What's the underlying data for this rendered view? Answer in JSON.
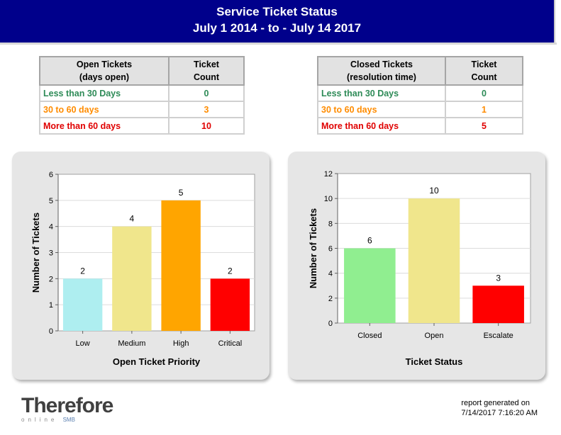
{
  "header": {
    "title": "Service Ticket Status",
    "date_range": "July 1 2014 - to - July 14 2017",
    "background": "#00008b"
  },
  "open_table": {
    "col1_header": "Open Tickets (days open)",
    "col1_line1": "Open Tickets",
    "col1_line2": "(days open)",
    "col2_line1": "Ticket",
    "col2_line2": "Count",
    "rows": [
      {
        "label": "Less than 30 Days",
        "count": "0",
        "color": "#2e8b57"
      },
      {
        "label": "30 to 60 days",
        "count": "3",
        "color": "#ff8c00"
      },
      {
        "label": "More than 60 days",
        "count": "10",
        "color": "#e00000"
      }
    ]
  },
  "closed_table": {
    "col1_line1": "Closed Tickets",
    "col1_line2": "(resolution time)",
    "col2_line1": "Ticket",
    "col2_line2": "Count",
    "rows": [
      {
        "label": "Less than 30 Days",
        "count": "0",
        "color": "#2e8b57"
      },
      {
        "label": "30 to 60 days",
        "count": "1",
        "color": "#ff8c00"
      },
      {
        "label": "More than 60 days",
        "count": "5",
        "color": "#e00000"
      }
    ]
  },
  "chart_data": [
    {
      "type": "bar",
      "categories": [
        "Low",
        "Medium",
        "High",
        "Critical"
      ],
      "values": [
        2,
        4,
        5,
        2
      ],
      "colors": [
        "#aeeef0",
        "#f0e68c",
        "#ffa500",
        "#ff0000"
      ],
      "xlabel": "Open Ticket Priority",
      "ylabel": "Number of Tickets",
      "ylim": [
        0,
        6
      ],
      "yticks": [
        0,
        1,
        2,
        3,
        4,
        5,
        6
      ],
      "grid": true,
      "data_labels": true
    },
    {
      "type": "bar",
      "categories": [
        "Closed",
        "Open",
        "Escalate"
      ],
      "values": [
        6,
        10,
        3
      ],
      "colors": [
        "#90ee90",
        "#f0e68c",
        "#ff0000"
      ],
      "xlabel": "Ticket Status",
      "ylabel": "Number of Tickets",
      "ylim": [
        0,
        12
      ],
      "yticks": [
        0,
        2,
        4,
        6,
        8,
        10,
        12
      ],
      "grid": true,
      "data_labels": true
    }
  ],
  "logo": {
    "brand": "Therefore",
    "sub": "online",
    "smb": "SMB"
  },
  "footer": {
    "generated_label": "report generated on",
    "generated_time": "7/14/2017 7:16:20 AM"
  }
}
